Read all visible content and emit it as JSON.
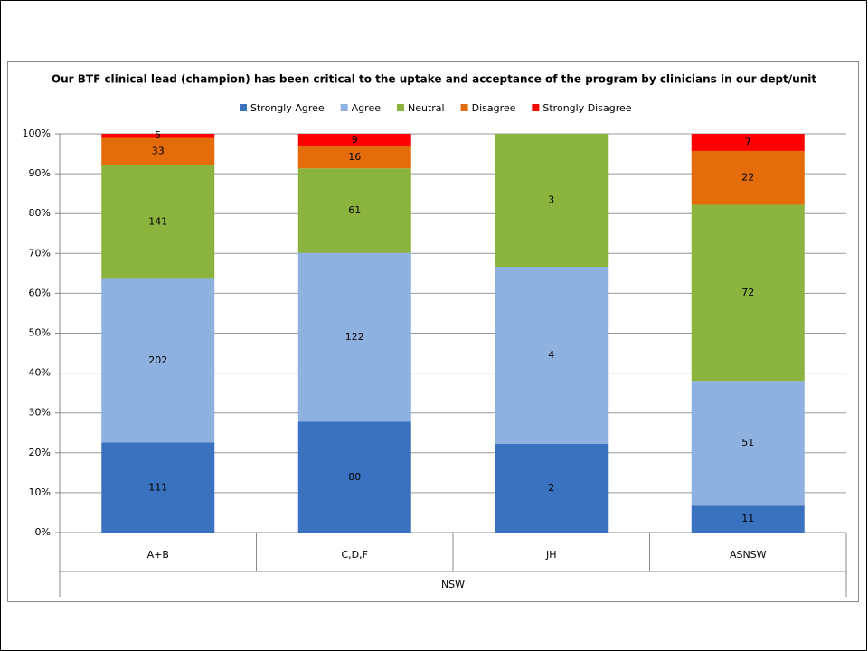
{
  "chart_data": {
    "type": "bar",
    "stack": "percent",
    "title": "Our BTF clinical  lead (champion) has been critical to the uptake and acceptance of the program by clinicians in our dept/unit",
    "categories": [
      "A+B",
      "C,D,F",
      "JH",
      "ASNSW"
    ],
    "group_label": "NSW",
    "series": [
      {
        "name": "Strongly Agree",
        "color": "#3a72c0",
        "values": [
          111,
          80,
          2,
          11
        ]
      },
      {
        "name": "Agree",
        "color": "#8eb1e0",
        "values": [
          202,
          122,
          4,
          51
        ]
      },
      {
        "name": "Neutral",
        "color": "#8bb43e",
        "values": [
          141,
          61,
          3,
          72
        ]
      },
      {
        "name": "Disagree",
        "color": "#e46c0a",
        "values": [
          33,
          16,
          0,
          22
        ]
      },
      {
        "name": "Strongly Disagree",
        "color": "#ff0000",
        "values": [
          5,
          9,
          0,
          7
        ]
      }
    ],
    "ylim": [
      0,
      100
    ],
    "yticks": [
      {
        "value": 0,
        "label": "0%"
      },
      {
        "value": 10,
        "label": "10%"
      },
      {
        "value": 20,
        "label": "20%"
      },
      {
        "value": 30,
        "label": "30%"
      },
      {
        "value": 40,
        "label": "40%"
      },
      {
        "value": 50,
        "label": "50%"
      },
      {
        "value": 60,
        "label": "60%"
      },
      {
        "value": 70,
        "label": "70%"
      },
      {
        "value": 80,
        "label": "80%"
      },
      {
        "value": 90,
        "label": "90%"
      },
      {
        "value": 100,
        "label": "100%"
      }
    ],
    "grid": true,
    "legend": "top"
  }
}
